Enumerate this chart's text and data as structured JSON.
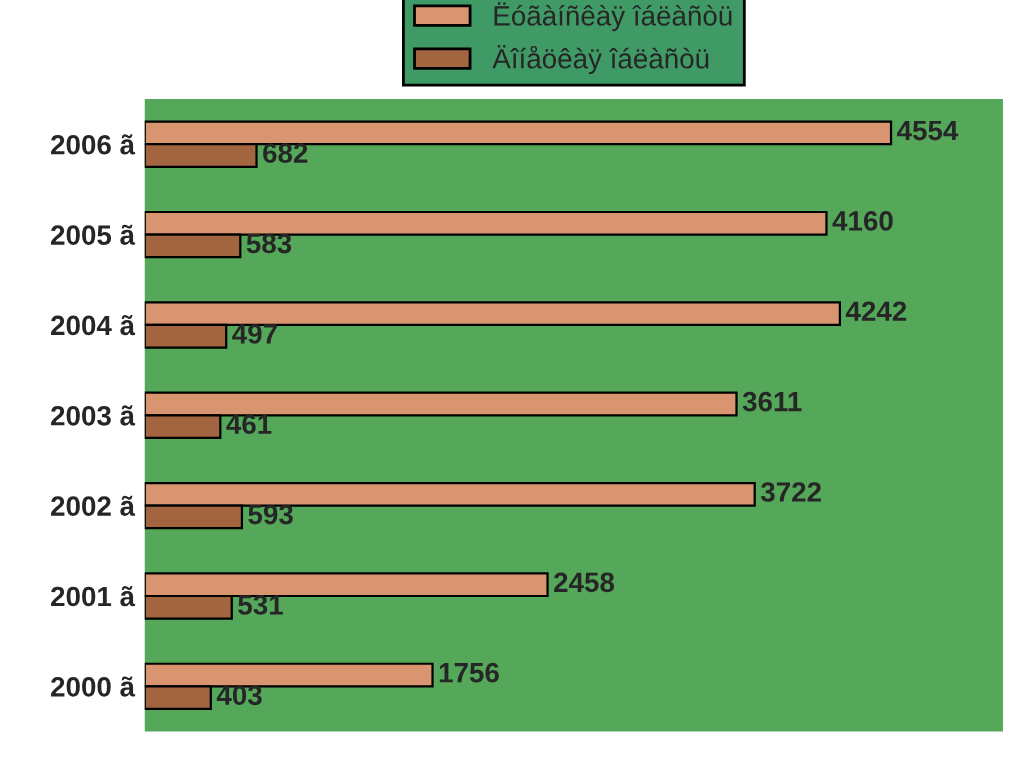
{
  "chart_data": {
    "type": "bar",
    "orientation": "horizontal",
    "categories": [
      "2006 ã",
      "2005 ã",
      "2004 ã",
      "2003 ã",
      "2002 ã",
      "2001 ã",
      "2000 ã"
    ],
    "series": [
      {
        "name": "Ëóãàíñêàÿ îáëàñòü",
        "color": "#d99470",
        "values": [
          4554,
          4160,
          4242,
          3611,
          3722,
          2458,
          1756
        ]
      },
      {
        "name": "Äîíåöêàÿ îáëàñòü",
        "color": "#a3653f",
        "values": [
          682,
          583,
          497,
          461,
          593,
          531,
          403
        ]
      }
    ],
    "data_labels": true,
    "legend": "top",
    "tick_labels": "y",
    "grid": false
  }
}
